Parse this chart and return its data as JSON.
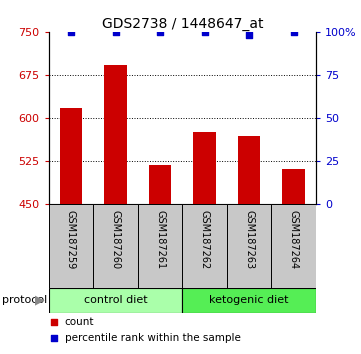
{
  "title": "GDS2738 / 1448647_at",
  "samples": [
    "GSM187259",
    "GSM187260",
    "GSM187261",
    "GSM187262",
    "GSM187263",
    "GSM187264"
  ],
  "bar_values": [
    617,
    693,
    517,
    575,
    568,
    511
  ],
  "percentile_values": [
    100,
    100,
    100,
    100,
    98,
    100
  ],
  "bar_color": "#cc0000",
  "dot_color": "#0000cc",
  "ylim_left": [
    450,
    750
  ],
  "ylim_right": [
    0,
    100
  ],
  "yticks_left": [
    450,
    525,
    600,
    675,
    750
  ],
  "yticks_right": [
    0,
    25,
    50,
    75,
    100
  ],
  "ytick_labels_right": [
    "0",
    "25",
    "50",
    "75",
    "100%"
  ],
  "gridlines": [
    525,
    600,
    675
  ],
  "groups": [
    {
      "label": "control diet",
      "indices": [
        0,
        1,
        2
      ],
      "color": "#aaffaa"
    },
    {
      "label": "ketogenic diet",
      "indices": [
        3,
        4,
        5
      ],
      "color": "#55ee55"
    }
  ],
  "protocol_label": "protocol",
  "legend_count_label": "count",
  "legend_pct_label": "percentile rank within the sample",
  "bar_width": 0.5,
  "title_fontsize": 10,
  "tick_fontsize": 8,
  "sample_fontsize": 7,
  "group_fontsize": 8,
  "legend_fontsize": 7.5
}
